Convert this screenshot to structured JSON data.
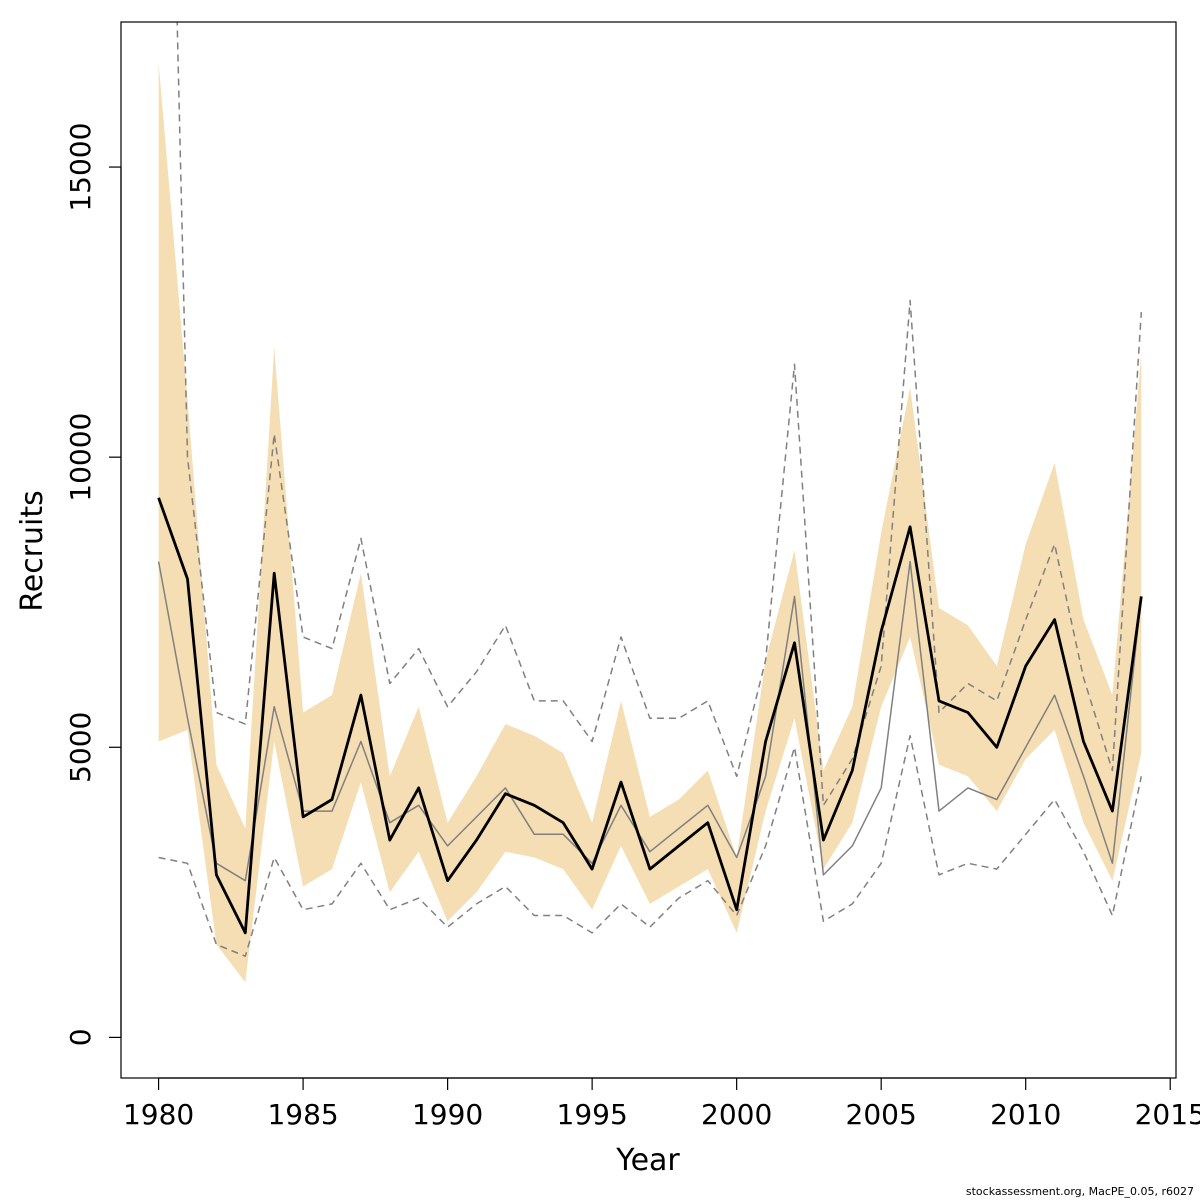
{
  "chart_data": {
    "type": "line",
    "xlabel": "Year",
    "ylabel": "Recruits",
    "xlim": [
      1978.7,
      2015.2
    ],
    "ylim": [
      -700,
      17500
    ],
    "x_ticks": [
      1980,
      1985,
      1990,
      1995,
      2000,
      2005,
      2010,
      2015
    ],
    "y_ticks": [
      0,
      5000,
      10000,
      15000
    ],
    "x": [
      1980,
      1981,
      1982,
      1983,
      1984,
      1985,
      1986,
      1987,
      1988,
      1989,
      1990,
      1991,
      1992,
      1993,
      1994,
      1995,
      1996,
      1997,
      1998,
      1999,
      2000,
      2001,
      2002,
      2003,
      2004,
      2005,
      2006,
      2007,
      2008,
      2009,
      2010,
      2011,
      2012,
      2013,
      2014
    ],
    "band": {
      "color": "#f5deb3",
      "lower": [
        5100,
        5300,
        1600,
        950,
        5100,
        2600,
        2900,
        4400,
        2500,
        3200,
        2000,
        2500,
        3200,
        3100,
        2900,
        2200,
        3300,
        2300,
        2600,
        2900,
        1800,
        3900,
        5500,
        2900,
        3700,
        5700,
        6900,
        4700,
        4500,
        3900,
        4800,
        5300,
        3700,
        2700,
        4900
      ],
      "upper": [
        16800,
        11000,
        4700,
        3600,
        11900,
        5600,
        5900,
        8000,
        4500,
        5700,
        3700,
        4500,
        5400,
        5200,
        4900,
        3700,
        5800,
        3800,
        4100,
        4600,
        3100,
        6500,
        8400,
        4600,
        5700,
        8700,
        11200,
        7400,
        7100,
        6400,
        8500,
        9900,
        7200,
        5900,
        11800
      ]
    },
    "series": [
      {
        "color": "#000000",
        "style": "solid-thick",
        "values": [
          9300,
          7900,
          2800,
          1800,
          8000,
          3800,
          4100,
          5900,
          3400,
          4300,
          2700,
          3400,
          4200,
          4000,
          3700,
          2900,
          4400,
          2900,
          3300,
          3700,
          2200,
          5100,
          6800,
          3400,
          4600,
          7000,
          8800,
          5800,
          5600,
          5000,
          6400,
          7200,
          5100,
          3900,
          7600
        ]
      },
      {
        "color": "#808080",
        "style": "solid-thin",
        "values": [
          8200,
          5500,
          3000,
          2700,
          5700,
          3900,
          3900,
          5100,
          3700,
          4000,
          3300,
          3800,
          4300,
          3500,
          3500,
          3000,
          4000,
          3200,
          3600,
          4000,
          3100,
          4500,
          7600,
          2800,
          3300,
          4300,
          8200,
          3900,
          4300,
          4100,
          5000,
          5900,
          4500,
          3000,
          7600
        ]
      },
      {
        "color": "#808080",
        "style": "dashed",
        "values": [
          3100,
          3000,
          1600,
          1400,
          3100,
          2200,
          2300,
          3000,
          2200,
          2400,
          1900,
          2300,
          2600,
          2100,
          2100,
          1800,
          2300,
          1900,
          2400,
          2700,
          2100,
          3300,
          5000,
          2000,
          2300,
          3000,
          5200,
          2800,
          3000,
          2900,
          3500,
          4100,
          3200,
          2100,
          4500
        ]
      },
      {
        "color": "#808080",
        "style": "dashed",
        "values": [
          31000,
          10000,
          5600,
          5400,
          10400,
          6900,
          6700,
          8600,
          6100,
          6700,
          5700,
          6300,
          7100,
          5800,
          5800,
          5100,
          6900,
          5500,
          5500,
          5800,
          4500,
          6500,
          11600,
          4000,
          4800,
          6400,
          12700,
          5600,
          6100,
          5800,
          7200,
          8500,
          6200,
          4600,
          12500
        ]
      }
    ]
  },
  "footer": "stockassessment.org, MacPE_0.05, r6027"
}
